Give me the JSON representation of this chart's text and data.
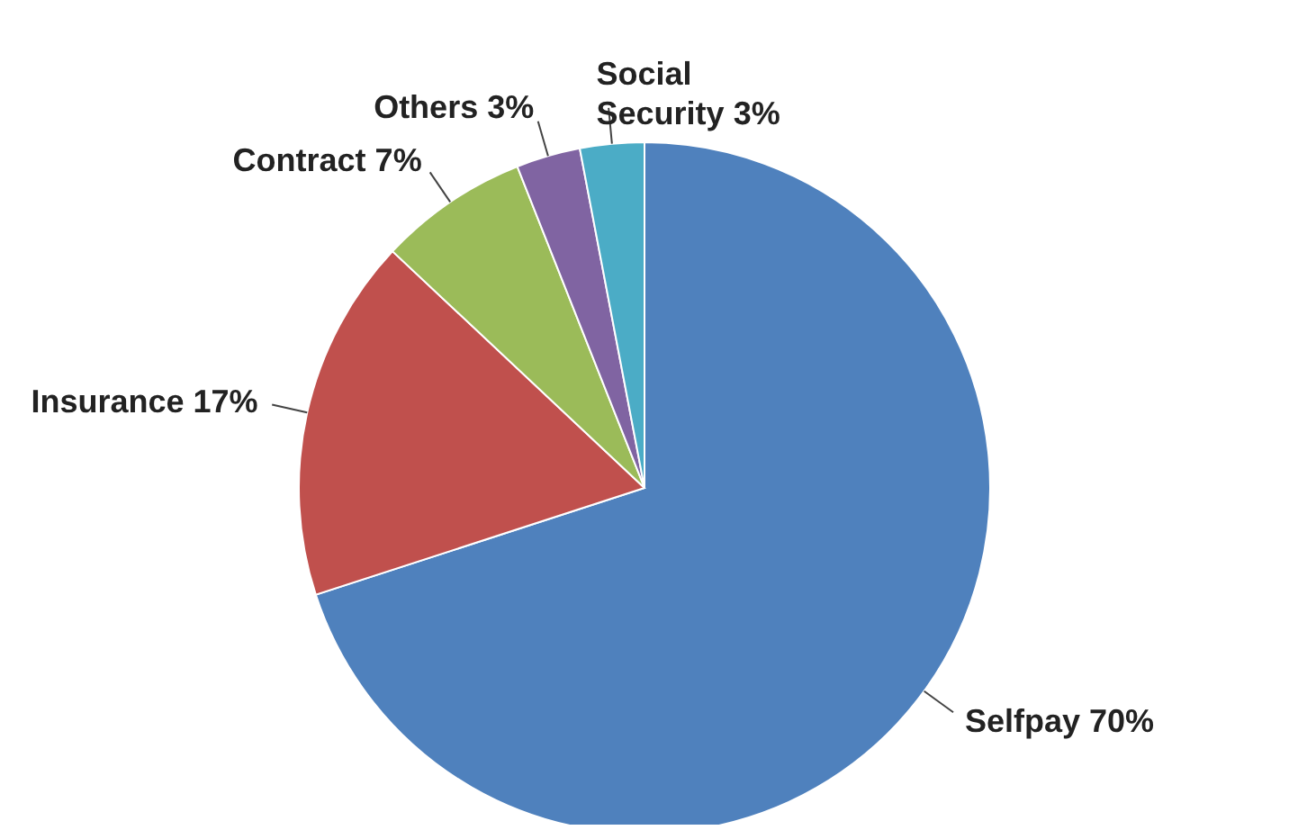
{
  "chart_data": {
    "type": "pie",
    "categories": [
      "Selfpay",
      "Insurance",
      "Contract",
      "Others",
      "Social Security"
    ],
    "values": [
      70,
      17,
      7,
      3,
      3
    ],
    "value_labels": [
      "70%",
      "17%",
      "7%",
      "3%",
      "3%"
    ],
    "colors": [
      "#4f81bd",
      "#c0504d",
      "#9bbb59",
      "#8064a2",
      "#4bacc6"
    ],
    "legend": false
  }
}
